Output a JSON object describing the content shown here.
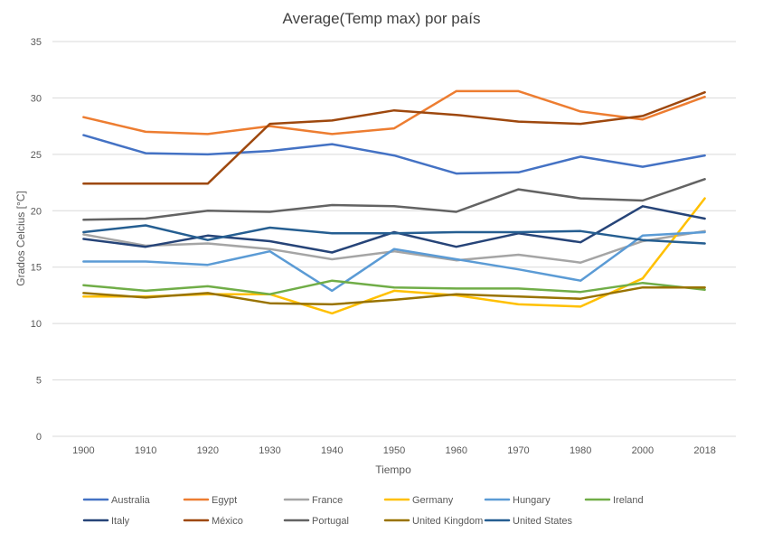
{
  "chart_data": {
    "type": "line",
    "title": "Average(Temp max) por país",
    "xlabel": "Tiempo",
    "ylabel": "Grados Celcius [°C]",
    "ylim": [
      0,
      35
    ],
    "yticks": [
      0,
      5,
      10,
      15,
      20,
      25,
      30,
      35
    ],
    "grid": true,
    "legend_position": "bottom",
    "categories": [
      "1900",
      "1910",
      "1920",
      "1930",
      "1940",
      "1950",
      "1960",
      "1970",
      "1980",
      "2000",
      "2018"
    ],
    "series": [
      {
        "name": "Australia",
        "color": "#4472C4",
        "values": [
          26.7,
          25.1,
          25.0,
          25.3,
          25.9,
          24.9,
          23.3,
          23.4,
          24.8,
          23.9,
          24.9
        ]
      },
      {
        "name": "Egypt",
        "color": "#ED7D31",
        "values": [
          28.3,
          27.0,
          26.8,
          27.5,
          26.8,
          27.3,
          30.6,
          30.6,
          28.8,
          28.1,
          30.1
        ]
      },
      {
        "name": "France",
        "color": "#A5A5A5",
        "values": [
          17.9,
          16.9,
          17.1,
          16.6,
          15.7,
          16.4,
          15.6,
          16.1,
          15.4,
          17.3,
          18.2
        ]
      },
      {
        "name": "Germany",
        "color": "#FFC000",
        "values": [
          12.4,
          12.4,
          12.6,
          12.6,
          10.9,
          12.9,
          12.5,
          11.7,
          11.5,
          14.0,
          21.1
        ]
      },
      {
        "name": "Hungary",
        "color": "#5B9BD5",
        "values": [
          15.5,
          15.5,
          15.2,
          16.4,
          12.9,
          16.6,
          15.7,
          14.8,
          13.8,
          17.8,
          18.1
        ]
      },
      {
        "name": "Ireland",
        "color": "#70AD47",
        "values": [
          13.4,
          12.9,
          13.3,
          12.6,
          13.8,
          13.2,
          13.1,
          13.1,
          12.8,
          13.6,
          13.0
        ]
      },
      {
        "name": "Italy",
        "color": "#264478",
        "values": [
          17.5,
          16.8,
          17.8,
          17.3,
          16.3,
          18.1,
          16.8,
          18.0,
          17.2,
          20.4,
          19.3
        ]
      },
      {
        "name": "México",
        "color": "#9E480E",
        "values": [
          22.4,
          22.4,
          22.4,
          27.7,
          28.0,
          28.9,
          28.5,
          27.9,
          27.7,
          28.4,
          30.5
        ]
      },
      {
        "name": "Portugal",
        "color": "#636363",
        "values": [
          19.2,
          19.3,
          20.0,
          19.9,
          20.5,
          20.4,
          19.9,
          21.9,
          21.1,
          20.9,
          22.8
        ]
      },
      {
        "name": "United Kingdom",
        "color": "#997300",
        "values": [
          12.7,
          12.3,
          12.7,
          11.8,
          11.7,
          12.1,
          12.6,
          12.4,
          12.2,
          13.2,
          13.2
        ]
      },
      {
        "name": "United States",
        "color": "#255E91",
        "values": [
          18.1,
          18.7,
          17.4,
          18.5,
          18.0,
          18.0,
          18.1,
          18.1,
          18.2,
          17.4,
          17.1
        ]
      }
    ]
  }
}
